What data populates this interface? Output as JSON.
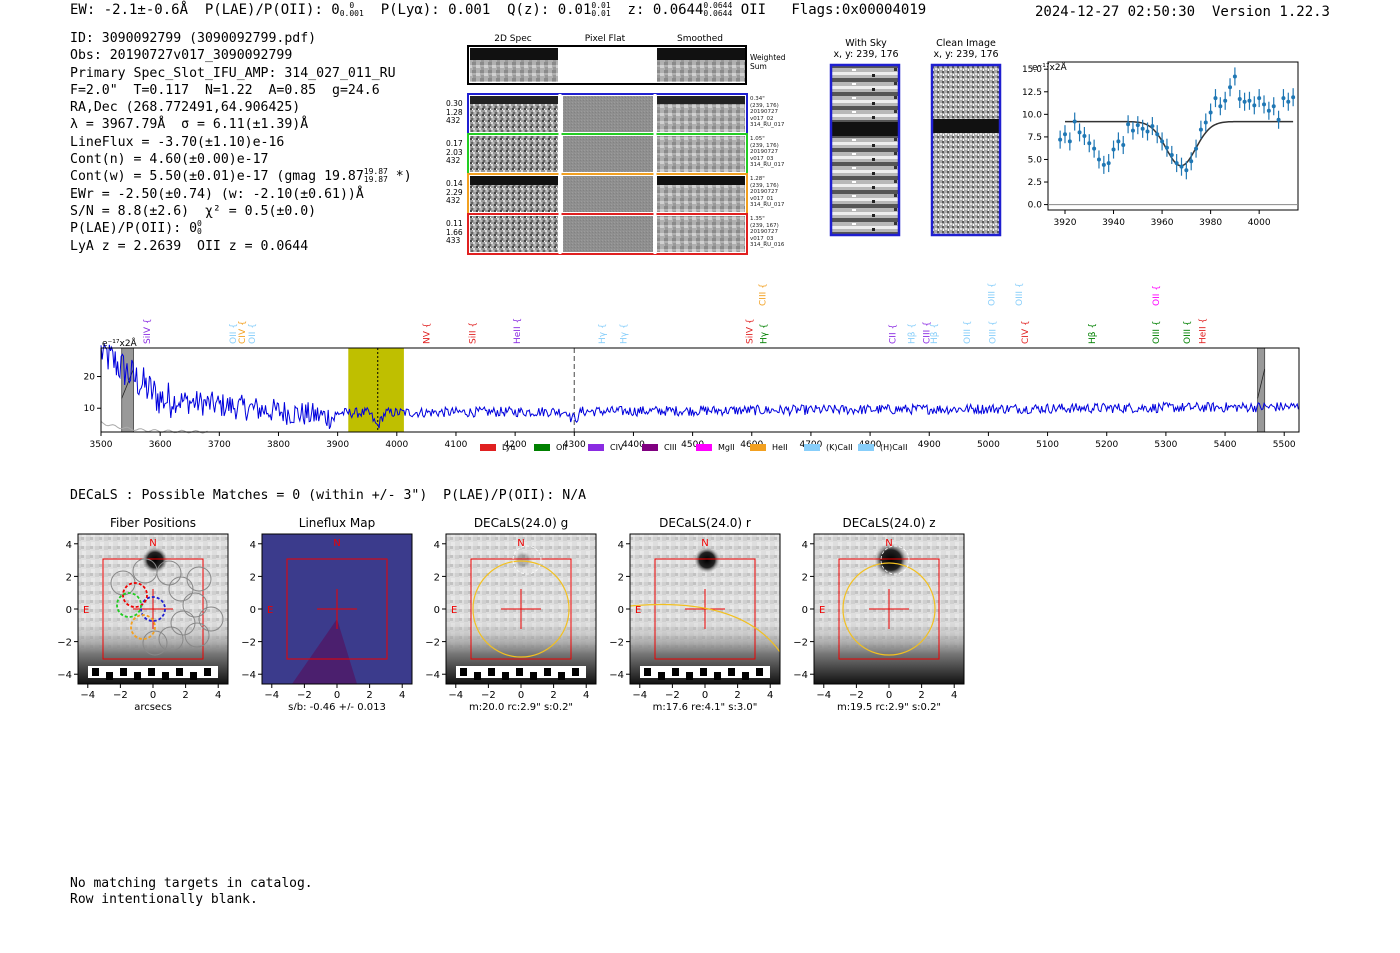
{
  "header": {
    "ew": "EW: -2.1±-0.6Å",
    "plae_label": "P(LAE)/P(OII): 0",
    "plae_hi": "0",
    "plae_lo": "0.001",
    "plya": "P(Lyα): 0.001",
    "qz_label": "Q(z): 0.01",
    "qz_hi": "0.01",
    "qz_lo": "0.01",
    "z_label": "z: 0.0644",
    "z_hi": "0.0644",
    "z_lo": "0.0644",
    "z_line": "OII",
    "flags": "Flags:0x00004019",
    "timestamp": "2024-12-27 02:50:30",
    "version": "Version 1.22.3"
  },
  "info": {
    "id": "ID: 3090092799 (3090092799.pdf)",
    "obs": "Obs: 20190727v017_3090092799",
    "primary": "Primary Spec_Slot_IFU_AMP: 314_027_011_RU",
    "params": "F=2.0\"  T=0.117  N=1.22  A=0.85  g=24.6",
    "radec": "RA,Dec (268.772491,64.906425)",
    "lambda": "λ = 3967.79Å  σ = 6.11(±1.39)Å",
    "lineflux": "LineFlux = -3.70(±1.10)e-16",
    "contn": "Cont(n) = 4.60(±0.00)e-17",
    "contw": "Cont(w) = 5.50(±0.01)e-17 (gmag 19.87",
    "gmag_hi": "19.87",
    "gmag_lo": "19.87",
    "contw_end": " *)",
    "ewr": "EWr = -2.50(±0.74) (w: -2.10(±0.61))Å",
    "sn": "S/N = 8.8(±2.6)  χ² = 0.5(±0.0)",
    "plae": "P(LAE)/P(OII): 0",
    "plae_hi": "0",
    "plae_lo": "0",
    "lya_z": "LyA z = 2.2639  OII z = 0.0644"
  },
  "cutouts": {
    "col_titles": [
      "2D Spec",
      "Pixel Flat",
      "Smoothed"
    ],
    "weighted_sum": "Weighted\nSum",
    "rows": [
      {
        "left": "0.30\n1.28\n432",
        "right": "0.34\"\n(239, 176)\n20190727\nv017_02\n314_RU_017",
        "color": "#1f1fd0"
      },
      {
        "left": "0.17\n2.03\n432",
        "right": "1.05\"\n(239, 176)\n20190727\nv017_03\n314_RU_017",
        "color": "#22cc22"
      },
      {
        "left": "0.14\n2.29\n432",
        "right": "1.28\"\n(239, 176)\n20190727\nv017_01\n314_RU_017",
        "color": "#f2a020"
      },
      {
        "left": "0.11\n1.66\n433",
        "right": "1.35\"\n(239, 167)\n20190727\nv017_03\n314_RU_016",
        "color": "#e02020"
      }
    ],
    "with_sky_title": "With Sky",
    "with_sky_coords": "x, y: 239, 176",
    "clean_title": "Clean Image",
    "clean_coords": "x, y: 239, 176"
  },
  "chart_data": [
    {
      "type": "scatter",
      "title": "",
      "ylabel": "e⁻¹⁷x2Å",
      "xlim": [
        3913,
        4016
      ],
      "ylim": [
        -0.6,
        15.8
      ],
      "xticks": [
        3920,
        3940,
        3960,
        3980,
        4000
      ],
      "yticks": [
        0.0,
        2.5,
        5.0,
        7.5,
        10.0,
        12.5,
        15.0
      ],
      "x": [
        3918,
        3920,
        3922,
        3924,
        3926,
        3928,
        3930,
        3932,
        3934,
        3936,
        3938,
        3940,
        3942,
        3944,
        3946,
        3948,
        3950,
        3952,
        3954,
        3956,
        3958,
        3960,
        3962,
        3964,
        3966,
        3968,
        3970,
        3972,
        3974,
        3976,
        3978,
        3980,
        3982,
        3984,
        3986,
        3988,
        3990,
        3992,
        3994,
        3996,
        3998,
        4000,
        4002,
        4004,
        4006,
        4008,
        4010,
        4012,
        4014
      ],
      "y": [
        7.2,
        7.8,
        7.0,
        9.2,
        8.0,
        7.6,
        6.8,
        6.2,
        5.0,
        4.4,
        4.6,
        6.1,
        7.0,
        6.6,
        8.9,
        8.2,
        8.8,
        8.4,
        8.1,
        8.7,
        7.8,
        7.0,
        6.3,
        5.5,
        4.6,
        4.2,
        3.8,
        4.8,
        6.2,
        8.3,
        9.1,
        10.2,
        11.8,
        10.9,
        11.5,
        13.0,
        14.2,
        11.7,
        11.4,
        11.5,
        11.0,
        11.8,
        11.1,
        10.4,
        10.9,
        9.4,
        11.8,
        11.4,
        11.9
      ],
      "yerr": [
        1.0,
        1.0,
        1.0,
        1.0,
        1.0,
        1.0,
        1.0,
        1.0,
        1.0,
        1.0,
        1.0,
        1.0,
        1.0,
        1.0,
        1.0,
        1.0,
        1.0,
        1.0,
        1.0,
        1.0,
        1.0,
        1.0,
        1.0,
        1.0,
        1.0,
        1.0,
        1.0,
        1.0,
        1.0,
        1.0,
        1.0,
        1.0,
        1.0,
        1.0,
        1.0,
        1.0,
        1.0,
        1.0,
        1.0,
        1.0,
        1.0,
        1.0,
        1.0,
        1.0,
        1.0,
        1.0,
        1.0,
        1.0,
        1.0
      ],
      "fit": {
        "continuum": 9.2,
        "center": 3967.79,
        "sigma": 6.11,
        "depth": -4.9
      }
    },
    {
      "type": "line",
      "ylabel": "e⁻¹⁷x2Å",
      "xlim": [
        3500,
        5525
      ],
      "ylim": [
        2.5,
        29
      ],
      "xticks": [
        3500,
        3600,
        3700,
        3800,
        3900,
        4000,
        4100,
        4200,
        4300,
        4400,
        4500,
        4600,
        4700,
        4800,
        4900,
        5000,
        5100,
        5200,
        5300,
        5400,
        5500
      ],
      "yticks": [
        10,
        20
      ],
      "series_color": "#0000dd",
      "highlight_range": [
        3918,
        4012
      ],
      "line_center": 3967.79,
      "dashed_marker": 4300,
      "masked_ranges": [
        [
          3535,
          3555
        ],
        [
          5455,
          5467
        ]
      ],
      "emission_labels": [
        {
          "name": "SiIV",
          "x": 3578,
          "color": "#8a2be2",
          "row": 1
        },
        {
          "name": "OII",
          "x": 3723,
          "color": "#87cefa",
          "row": 1
        },
        {
          "name": "CIV",
          "x": 3738,
          "color": "#f2a020",
          "row": 1
        },
        {
          "name": "OII",
          "x": 3755,
          "color": "#87cefa",
          "row": 1
        },
        {
          "name": "NV",
          "x": 4050,
          "color": "#e02020",
          "row": 1
        },
        {
          "name": "SiII",
          "x": 4128,
          "color": "#e02020",
          "row": 1
        },
        {
          "name": "HeII",
          "x": 4203,
          "color": "#8a2be2",
          "row": 1
        },
        {
          "name": "Hγ",
          "x": 4347,
          "color": "#87cefa",
          "row": 1
        },
        {
          "name": "Hγ",
          "x": 4383,
          "color": "#87cefa",
          "row": 1
        },
        {
          "name": "SiIV",
          "x": 4596,
          "color": "#e02020",
          "row": 1
        },
        {
          "name": "CIII",
          "x": 4618,
          "color": "#f2a020",
          "row": 0
        },
        {
          "name": "Hγ",
          "x": 4620,
          "color": "#008000",
          "row": 1
        },
        {
          "name": "CII",
          "x": 4838,
          "color": "#8a2be2",
          "row": 1
        },
        {
          "name": "Hβ",
          "x": 4870,
          "color": "#87cefa",
          "row": 1
        },
        {
          "name": "CIII",
          "x": 4895,
          "color": "#8a2be2",
          "row": 1
        },
        {
          "name": "Hβ",
          "x": 4908,
          "color": "#87cefa",
          "row": 1
        },
        {
          "name": "OIII",
          "x": 4964,
          "color": "#87cefa",
          "row": 1
        },
        {
          "name": "OIII",
          "x": 5005,
          "color": "#87cefa",
          "row": 0
        },
        {
          "name": "OIII",
          "x": 5007,
          "color": "#87cefa",
          "row": 1
        },
        {
          "name": "OIII",
          "x": 5052,
          "color": "#87cefa",
          "row": 0
        },
        {
          "name": "CIV",
          "x": 5062,
          "color": "#e02020",
          "row": 1
        },
        {
          "name": "Hβ",
          "x": 5175,
          "color": "#008000",
          "row": 1
        },
        {
          "name": "OII",
          "x": 5283,
          "color": "#ff00ff",
          "row": 0
        },
        {
          "name": "OIII",
          "x": 5283,
          "color": "#008000",
          "row": 1
        },
        {
          "name": "OIII",
          "x": 5336,
          "color": "#008000",
          "row": 1
        },
        {
          "name": "HeII",
          "x": 5362,
          "color": "#e02020",
          "row": 1
        }
      ],
      "legend": [
        {
          "label": "Lyα",
          "color": "#e02020"
        },
        {
          "label": "OII",
          "color": "#008000"
        },
        {
          "label": "CIV",
          "color": "#8a2be2"
        },
        {
          "label": "CIII",
          "color": "#800080"
        },
        {
          "label": "MgII",
          "color": "#ff00ff"
        },
        {
          "label": "HeII",
          "color": "#f2a020"
        },
        {
          "label": "(K)CaII",
          "color": "#87cefa"
        },
        {
          "label": "(H)CaII",
          "color": "#87cefa"
        }
      ]
    }
  ],
  "decals": {
    "title": "DECaLS : Possible Matches = 0 (within +/- 3\")  P(LAE)/P(OII): N/A",
    "panels": [
      {
        "title": "Fiber Positions",
        "xlabel": "arcsecs"
      },
      {
        "title": "Lineflux Map",
        "xlabel": "s/b: -0.46 +/- 0.013"
      },
      {
        "title": "DECaLS(24.0) g",
        "xlabel": "m:20.0 rc:2.9\"  s:0.2\""
      },
      {
        "title": "DECaLS(24.0) r",
        "xlabel": "m:17.6  re:4.1\"  s:3.0\""
      },
      {
        "title": "DECaLS(24.0) z",
        "xlabel": "m:19.5 rc:2.9\"  s:0.2\""
      }
    ],
    "ticks": [
      "−4",
      "−2",
      "0",
      "2",
      "4"
    ],
    "compass_n": "N",
    "compass_e": "E"
  },
  "footer": {
    "line1": "No matching targets in catalog.",
    "line2": "Row intentionally blank."
  }
}
